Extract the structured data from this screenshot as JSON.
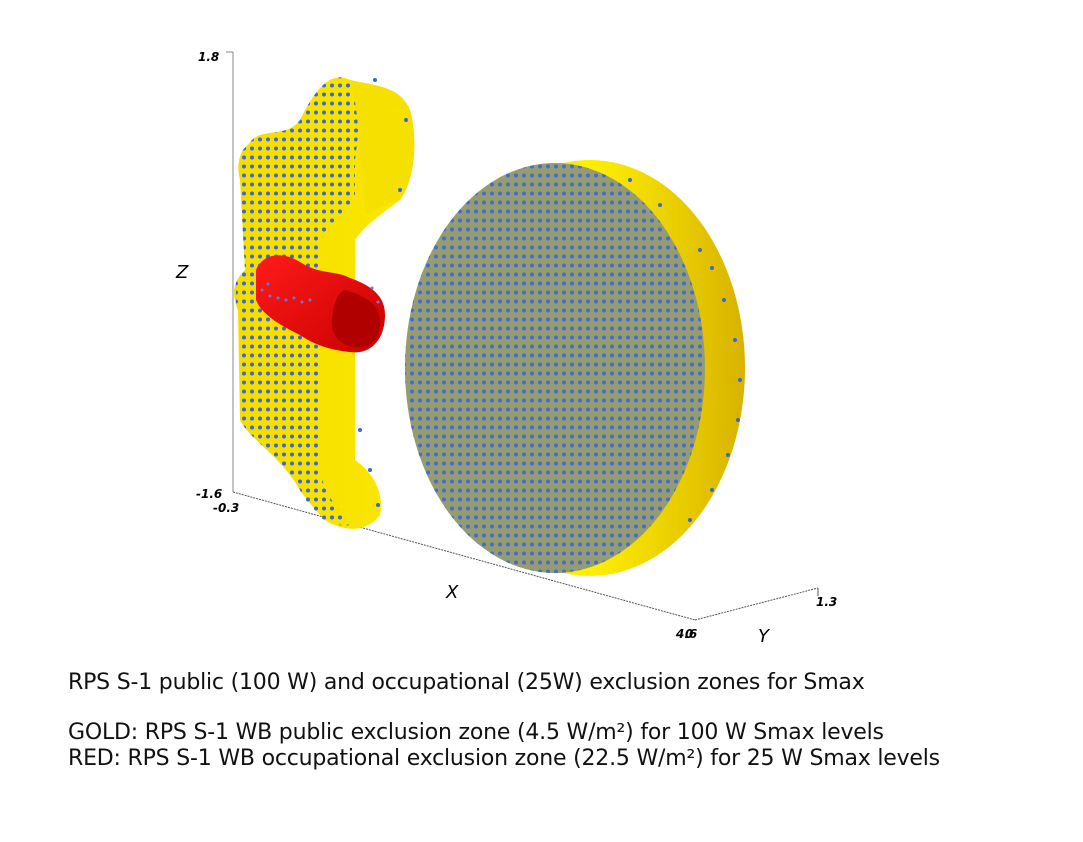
{
  "axes": {
    "z_label": "Z",
    "x_label": "X",
    "y_label": "Y",
    "z_max": "1.8",
    "z_min": "-1.6",
    "x_min": "-0.3",
    "x_max": "4.6",
    "y_min": "0",
    "y_max": "1.3"
  },
  "colors": {
    "gold": "#f2d600",
    "gold_dark": "#c9a800",
    "red": "#e00000",
    "red_dark": "#a00000",
    "blue_points": "#3a66d8"
  },
  "caption": {
    "title": "RPS S-1 public (100 W) and occupational (25W) exclusion zones for Smax",
    "gold_line": "GOLD: RPS S-1 WB public exclusion zone (4.5 W/m²) for 100 W Smax levels",
    "red_line": "RED: RPS S-1 WB occupational exclusion zone (22.5 W/m²) for 25 W Smax levels"
  }
}
